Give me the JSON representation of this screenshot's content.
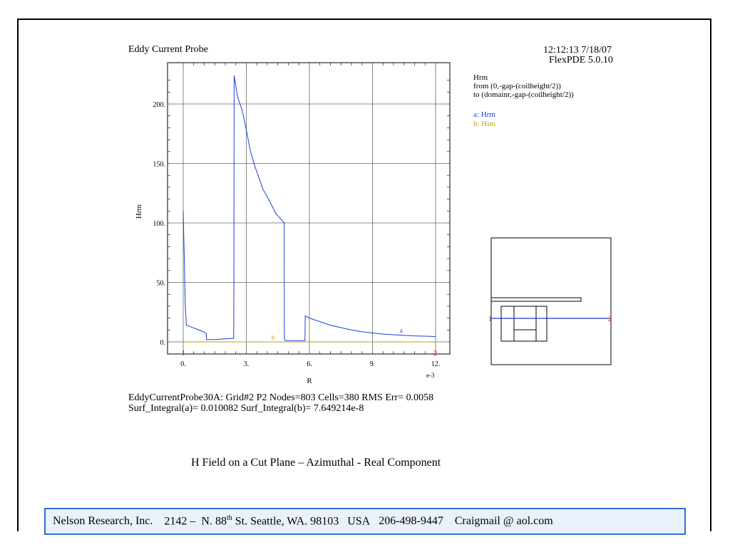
{
  "plot": {
    "title": "Eddy Current Probe",
    "timestamp": "12:12:13 7/18/07",
    "version": "FlexPDE 5.0.10",
    "variable_info": {
      "name": "Hrm",
      "from": "from (0,-gap-(coilheight/2))",
      "to": "to (domainr,-gap-(coilheight/2))"
    },
    "legend": [
      {
        "label": "a: Hrm",
        "color": "#1a3fd6"
      },
      {
        "label": "b: Him",
        "color": "#b8a600"
      }
    ],
    "stats": {
      "line1": "EddyCurrentProbe30A:  Grid#2  P2  Nodes=803  Cells=380  RMS Err= 0.0058",
      "line2": "Surf_Integral(a)=  0.010082  Surf_Integral(b)=  7.649214e-8"
    },
    "path_markers": [
      "1",
      "2"
    ]
  },
  "chart_data": {
    "type": "line",
    "xlabel": "R",
    "ylabel": "Hrm",
    "x_multiplier_label": "e-3",
    "xlim": [
      0,
      12
    ],
    "ylim": [
      -5,
      230
    ],
    "xticks": [
      0,
      3,
      6,
      9,
      12
    ],
    "xtick_labels": [
      "0.",
      "3.",
      "6.",
      "9.",
      "12."
    ],
    "yticks": [
      0,
      50,
      100,
      150,
      200
    ],
    "ytick_labels": [
      "0.",
      "50.",
      "100.",
      "150.",
      "200."
    ],
    "grid": true,
    "series": [
      {
        "name": "a",
        "color": "#1a3fd6",
        "x": [
          0,
          0.05,
          0.1,
          0.15,
          0.3,
          0.6,
          0.9,
          1.1,
          1.11,
          1.5,
          2.0,
          2.4,
          2.41,
          2.42,
          2.5,
          2.6,
          2.8,
          3.0,
          3.2,
          3.4,
          3.6,
          3.8,
          4.0,
          4.2,
          4.4,
          4.6,
          4.8,
          4.81,
          4.85,
          5.0,
          5.5,
          5.79,
          5.8,
          6.0,
          6.5,
          7.0,
          7.5,
          8.0,
          8.5,
          9.0,
          9.5,
          10.0,
          10.5,
          11.0,
          11.5,
          12.0
        ],
        "y": [
          110,
          70,
          30,
          14,
          13,
          11,
          9,
          7,
          2,
          2,
          2.5,
          3,
          50,
          224,
          215,
          205,
          195,
          178,
          160,
          148,
          138,
          128,
          122,
          115,
          108,
          104,
          100,
          3,
          1,
          1,
          1,
          1,
          22,
          20,
          17,
          14,
          12,
          10,
          8.5,
          7.5,
          6.5,
          6,
          5.5,
          5,
          4.8,
          4.5
        ]
      },
      {
        "name": "b",
        "color": "#b8a600",
        "x": [
          0,
          12
        ],
        "y": [
          0,
          0
        ]
      }
    ],
    "annotations": [
      {
        "text": "a",
        "x": 10.3,
        "y": 6
      },
      {
        "text": "b",
        "x": 4.2,
        "y": 0
      }
    ]
  },
  "caption": "H Field on a Cut Plane – Azimuthal - Real Component",
  "footer": {
    "company": "Nelson Research, Inc.",
    "address_prefix": "2142 –  N. 88",
    "address_sup": "th",
    "address_suffix": " St. Seattle, WA. 98103   USA",
    "phone": "206-498-9447",
    "email": "Craigmail @ aol.com"
  }
}
